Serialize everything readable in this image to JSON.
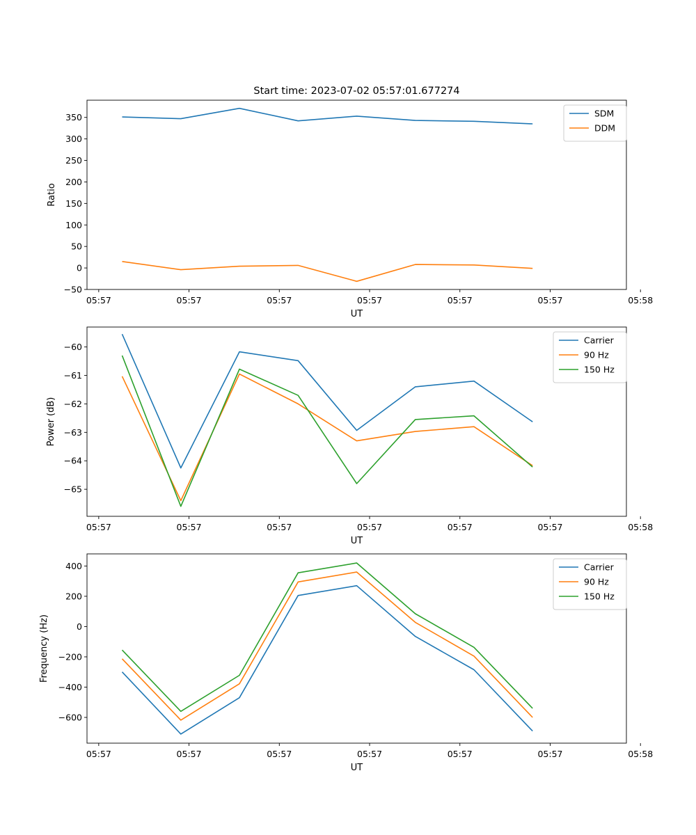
{
  "chart_data": [
    {
      "type": "line",
      "title": "Start time: 2023-07-02 05:57:01.677274",
      "xlabel": "UT",
      "ylabel": "Ratio",
      "x_tick_labels": [
        "05:57",
        "05:57",
        "05:57",
        "05:57",
        "05:57",
        "05:57",
        "05:58"
      ],
      "y_ticks": [
        -50,
        0,
        50,
        100,
        150,
        200,
        250,
        300,
        350
      ],
      "ylim": [
        -50,
        390
      ],
      "xlim": [
        -0.6,
        8.6
      ],
      "x": [
        0,
        1,
        2,
        3,
        4,
        5,
        6,
        7
      ],
      "legend_position": "top-right",
      "series": [
        {
          "name": "SDM",
          "color": "#1f77b4",
          "values": [
            351,
            347,
            371,
            342,
            353,
            343,
            341,
            335
          ]
        },
        {
          "name": "DDM",
          "color": "#ff7f0e",
          "values": [
            15,
            -4,
            4,
            6,
            -31,
            8,
            7,
            -1
          ]
        }
      ]
    },
    {
      "type": "line",
      "title": "",
      "xlabel": "UT",
      "ylabel": "Power (dB)",
      "x_tick_labels": [
        "05:57",
        "05:57",
        "05:57",
        "05:57",
        "05:57",
        "05:57",
        "05:58"
      ],
      "y_ticks": [
        -65,
        -64,
        -63,
        -62,
        -61,
        -60
      ],
      "ylim": [
        -65.95,
        -59.3
      ],
      "xlim": [
        -0.6,
        8.6
      ],
      "x": [
        0,
        1,
        2,
        3,
        4,
        5,
        6,
        7
      ],
      "legend_position": "top-right",
      "series": [
        {
          "name": "Carrier",
          "color": "#1f77b4",
          "values": [
            -59.55,
            -64.25,
            -60.17,
            -60.48,
            -62.93,
            -61.4,
            -61.2,
            -62.63
          ]
        },
        {
          "name": "90 Hz",
          "color": "#ff7f0e",
          "values": [
            -61.03,
            -65.4,
            -60.95,
            -62.0,
            -63.3,
            -62.97,
            -62.8,
            -64.17
          ]
        },
        {
          "name": "150 Hz",
          "color": "#2ca02c",
          "values": [
            -60.3,
            -65.6,
            -60.78,
            -61.7,
            -64.8,
            -62.55,
            -62.42,
            -64.22
          ]
        }
      ]
    },
    {
      "type": "line",
      "title": "",
      "xlabel": "UT",
      "ylabel": "Frequency (Hz)",
      "x_tick_labels": [
        "05:57",
        "05:57",
        "05:57",
        "05:57",
        "05:57",
        "05:57",
        "05:58"
      ],
      "y_ticks": [
        -600,
        -400,
        -200,
        0,
        200,
        400
      ],
      "ylim": [
        -770,
        480
      ],
      "xlim": [
        -0.6,
        8.6
      ],
      "x": [
        0,
        1,
        2,
        3,
        4,
        5,
        6,
        7
      ],
      "legend_position": "top-right",
      "series": [
        {
          "name": "Carrier",
          "color": "#1f77b4",
          "values": [
            -300,
            -710,
            -470,
            205,
            270,
            -65,
            -285,
            -690
          ]
        },
        {
          "name": "90 Hz",
          "color": "#ff7f0e",
          "values": [
            -213,
            -618,
            -378,
            295,
            360,
            28,
            -195,
            -600
          ]
        },
        {
          "name": "150 Hz",
          "color": "#2ca02c",
          "values": [
            -155,
            -560,
            -322,
            355,
            420,
            85,
            -137,
            -540
          ]
        }
      ]
    }
  ]
}
